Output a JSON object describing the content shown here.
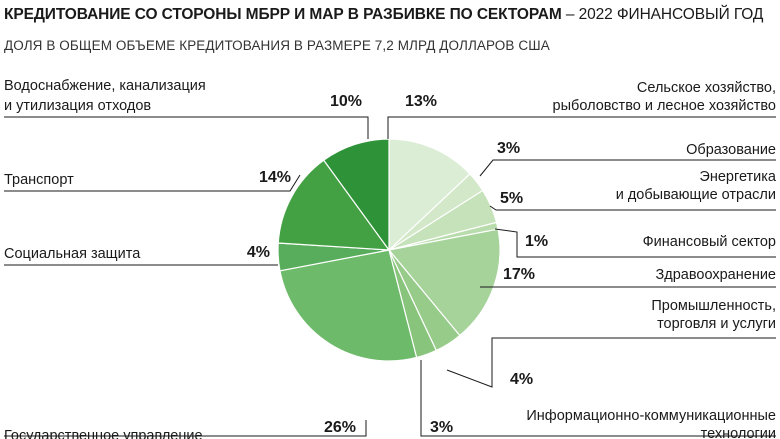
{
  "title_bold": "КРЕДИТОВАНИЕ СО СТОРОНЫ МБРР И МАР В РАЗБИВКЕ ПО СЕКТОРАМ",
  "title_rest": " – 2022 ФИНАНСОВЫЙ ГОД",
  "subtitle": "ДОЛЯ В ОБЩЕМ ОБЪЕМЕ КРЕДИТОВАНИЯ В РАЗМЕРЕ 7,2 МЛРД ДОЛЛАРОВ США",
  "chart_data": {
    "type": "pie",
    "start": "12 o'clock",
    "direction": "clockwise",
    "slices": [
      {
        "label": [
          "Сельское хозяйство,",
          "рыболовство и лесное хозяйство"
        ],
        "value": 13,
        "value_label": "13%",
        "color": "#dcedd5"
      },
      {
        "label": [
          "Образование"
        ],
        "value": 3,
        "value_label": "3%",
        "color": "#d2e8c8"
      },
      {
        "label": [
          "Энергетика",
          "и добывающие отрасли"
        ],
        "value": 5,
        "value_label": "5%",
        "color": "#c6e2ba"
      },
      {
        "label": [
          "Финансовый сектор"
        ],
        "value": 1,
        "value_label": "1%",
        "color": "#b8dcab"
      },
      {
        "label": [
          "Здравоохранение"
        ],
        "value": 17,
        "value_label": "17%",
        "color": "#a6d39a"
      },
      {
        "label": [
          "Промышленность,",
          "торговля и услуги"
        ],
        "value": 4,
        "value_label": "4%",
        "color": "#96cb89"
      },
      {
        "label": [
          "Информационно-коммуникационные",
          "технологии"
        ],
        "value": 3,
        "value_label": "3%",
        "color": "#88c47b"
      },
      {
        "label": [
          "Государственное управление"
        ],
        "value": 26,
        "value_label": "26%",
        "color": "#6dba6a"
      },
      {
        "label": [
          "Социальная защита"
        ],
        "value": 4,
        "value_label": "4%",
        "color": "#58ad5c"
      },
      {
        "label": [
          "Транспорт"
        ],
        "value": 14,
        "value_label": "14%",
        "color": "#43a143"
      },
      {
        "label": [
          "Водоснабжение, канализация",
          "и утилизация отходов"
        ],
        "value": 10,
        "value_label": "10%",
        "color": "#2e9338"
      }
    ]
  }
}
